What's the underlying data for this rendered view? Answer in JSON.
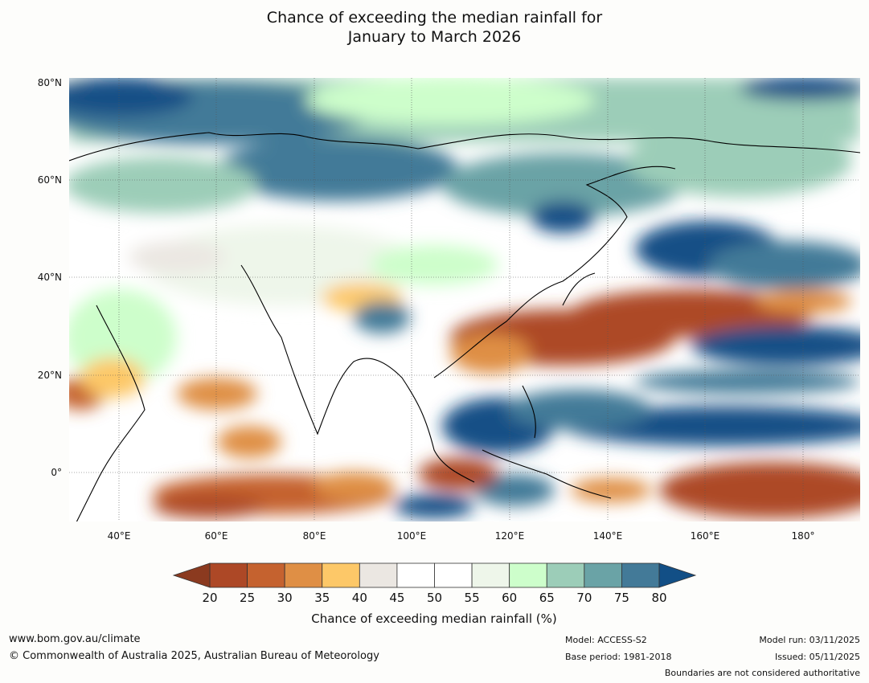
{
  "title": {
    "line1": "Chance of exceeding the median rainfall for",
    "line2": "January to March 2026"
  },
  "map": {
    "lat_ticks": [
      "80°N",
      "60°N",
      "40°N",
      "20°N",
      "0°"
    ],
    "lon_ticks": [
      "40°E",
      "60°E",
      "80°E",
      "100°E",
      "120°E",
      "140°E",
      "160°E",
      "180°"
    ],
    "lat_range": [
      -10,
      80
    ],
    "lon_range": [
      30,
      190
    ]
  },
  "colorbar": {
    "label": "Chance of exceeding median rainfall (%)",
    "ticks": [
      "20",
      "25",
      "30",
      "35",
      "40",
      "45",
      "50",
      "55",
      "60",
      "65",
      "70",
      "75",
      "80"
    ],
    "under_color": "#8b3a1f",
    "over_color": "#124f86",
    "colors": [
      "#ad4826",
      "#c5622f",
      "#df8f45",
      "#fdc868",
      "#ebe7e2",
      "#ffffff",
      "#ffffff",
      "#eef6ea",
      "#cdfecb",
      "#9ccdb8",
      "#6aa3a6",
      "#437a98"
    ]
  },
  "footer": {
    "url": "www.bom.gov.au/climate",
    "copyright": "© Commonwealth of Australia 2025, Australian Bureau of Meteorology",
    "model": "Model: ACCESS-S2",
    "base_period": "Base period: 1981-2018",
    "model_run": "Model run: 03/11/2025",
    "issued": "Issued: 05/11/2025",
    "disclaimer": "Boundaries are not considered authoritative"
  }
}
